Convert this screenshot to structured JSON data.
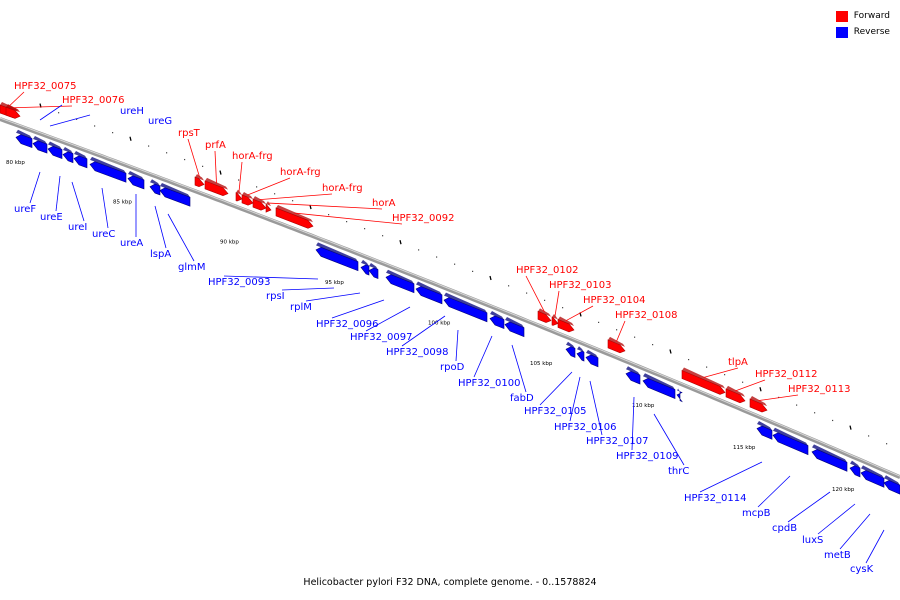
{
  "legend": [
    {
      "label": "Forward",
      "color": "#ff0000"
    },
    {
      "label": "Reverse",
      "color": "#0000ff"
    }
  ],
  "caption": "Helicobacter pylori F32 DNA, complete genome. - 0..1578824",
  "colors": {
    "forward": "#ff0000",
    "reverse": "#0000ff",
    "backbone": "#888888"
  },
  "kbp_labels": [
    "80 kbp",
    "85 kbp",
    "90 kbp",
    "95 kbp",
    "100 kbp",
    "105 kbp",
    "110 kbp",
    "115 kbp",
    "120 kbp"
  ],
  "genes_forward": [
    "HPF32_0075",
    "HPF32_0076",
    "rpsT",
    "prfA",
    "horA-frg",
    "horA-frg",
    "horA-frg",
    "horA",
    "HPF32_0092",
    "HPF32_0102",
    "HPF32_0103",
    "HPF32_0104",
    "HPF32_0108",
    "tlpA",
    "HPF32_0112",
    "HPF32_0113"
  ],
  "genes_reverse": [
    "ureH",
    "ureG",
    "ureF",
    "ureE",
    "ureI",
    "ureC",
    "ureA",
    "lspA",
    "glmM",
    "HPF32_0093",
    "rpsI",
    "rplM",
    "HPF32_0096",
    "HPF32_0097",
    "HPF32_0098",
    "rpoD",
    "HPF32_0100",
    "fabD",
    "HPF32_0105",
    "HPF32_0106",
    "HPF32_0107",
    "HPF32_0109",
    "thrC",
    "HPF32_0114",
    "mcpB",
    "cpdB",
    "luxS",
    "metB",
    "cysK"
  ]
}
